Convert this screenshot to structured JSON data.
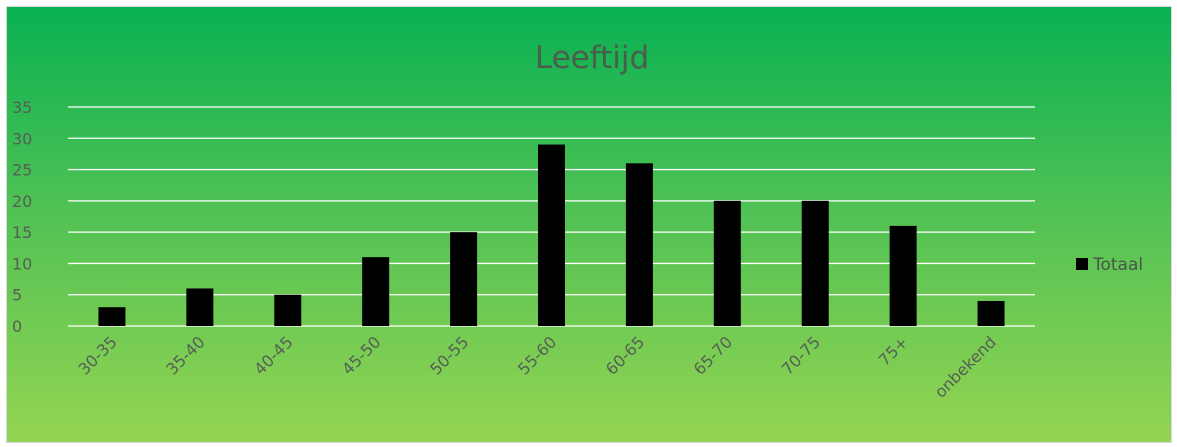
{
  "chart_data": {
    "type": "bar",
    "title": "Leeftijd",
    "categories": [
      "30-35",
      "35-40",
      "40-45",
      "45-50",
      "50-55",
      "55-60",
      "60-65",
      "65-70",
      "70-75",
      "75+",
      "onbekend"
    ],
    "series": [
      {
        "name": "Totaal",
        "values": [
          3,
          6,
          5,
          11,
          15,
          29,
          26,
          20,
          20,
          16,
          4
        ]
      }
    ],
    "yticks": [
      0,
      5,
      10,
      15,
      20,
      25,
      30,
      35
    ],
    "ylim": [
      0,
      35
    ],
    "grid": true,
    "legend_position": "right",
    "colors": {
      "bar": "#000000",
      "grid": "#ffffff",
      "background_top": "#09b152",
      "background_bottom": "#94d452"
    }
  }
}
